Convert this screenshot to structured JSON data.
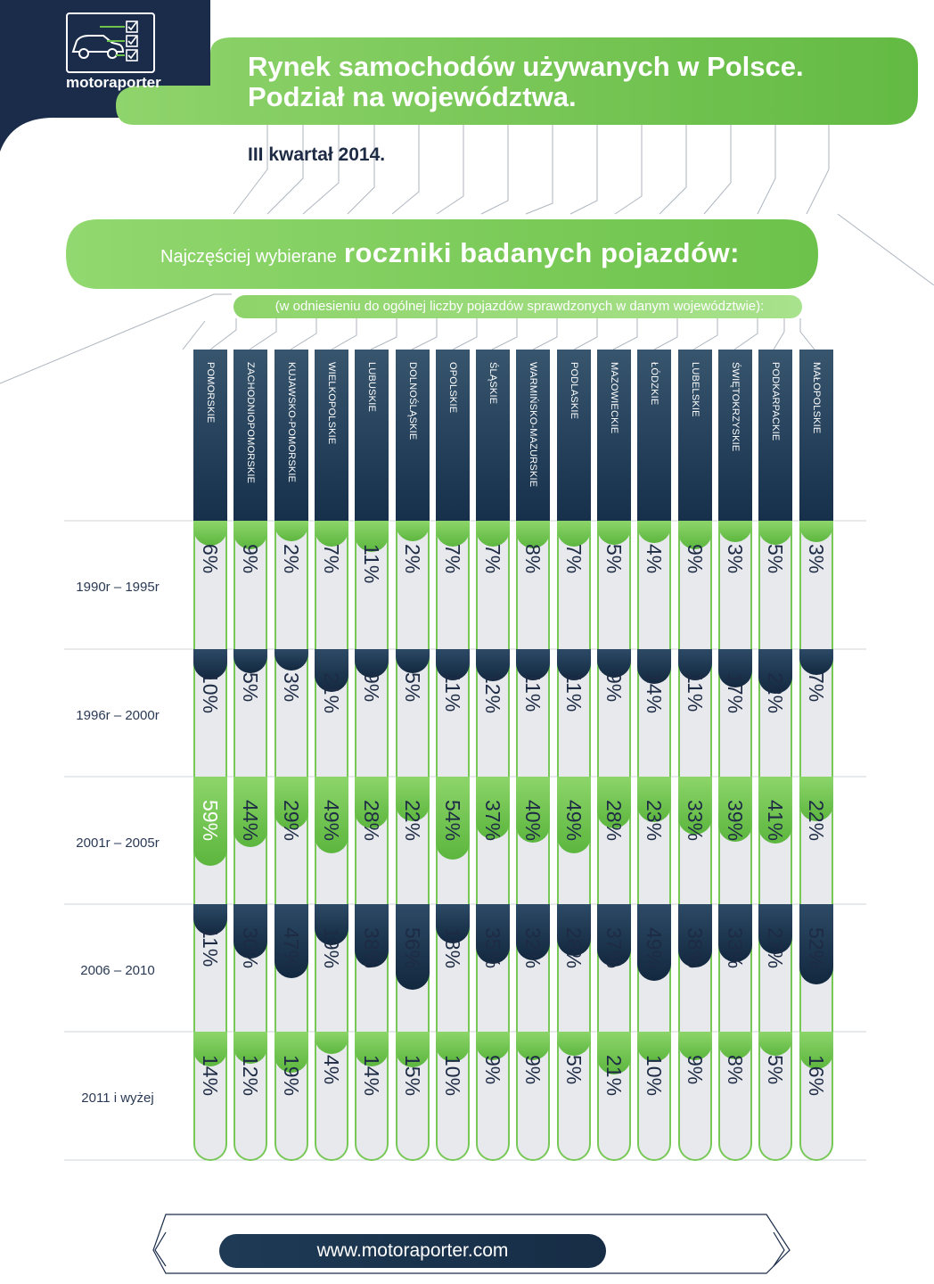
{
  "brand": {
    "logo_text": "motoraporter",
    "website": "www.motoraporter.com"
  },
  "header": {
    "title_line1": "Rynek samochodów używanych  w Polsce.",
    "title_line2": "Podział na województwa.",
    "quarter": "III kwartał 2014."
  },
  "subtitle": {
    "prefix": "Najczęściej wybierane",
    "emphasis": "roczniki badanych pojazdów:",
    "note": "(w odniesieniu do ogólnej liczby pojazdów sprawdzonych w danym województwie):"
  },
  "colors": {
    "navy": "#1a3350",
    "green": "#6cc24a",
    "light_green": "#8dd56a",
    "cell_bg": "#e7e9ec"
  },
  "icons": [
    "car-icon",
    "checkbox-icon",
    "chevron-left-icon",
    "chevron-right-icon"
  ],
  "chart_data": {
    "type": "table",
    "title": "Najczęściej wybierane roczniki badanych pojazdów:",
    "subtitle": "(w odniesieniu do ogólnej liczby pojazdów sprawdzonych w danym województwie):",
    "row_labels": [
      "1990r – 1995r",
      "1996r – 2000r",
      "2001r – 2005r",
      "2006 – 2010",
      "2011 i wyżej"
    ],
    "categories": [
      "POMORSKIE",
      "ZACHODNIOPOMORSKIE",
      "KUJAWSKO-POMORSKIE",
      "WIELKOPOLSKIE",
      "LUBUSKIE",
      "DOLNOŚLĄSKIE",
      "OPOLSKIE",
      "ŚLĄSKIE",
      "WARMIŃSKO-MAZURSKIE",
      "PODLASKIE",
      "MAZOWIECKIE",
      "ŁÓDZKIE",
      "LUBELSKIE",
      "ŚWIĘTOKRZYSKIE",
      "PODKARPACKIE",
      "MAŁOPOLSKIE"
    ],
    "series": [
      {
        "name": "1990r – 1995r",
        "values": [
          6,
          9,
          2,
          7,
          11,
          2,
          7,
          7,
          8,
          7,
          5,
          4,
          9,
          3,
          5,
          3
        ]
      },
      {
        "name": "1996r – 2000r",
        "values": [
          10,
          5,
          3,
          21,
          9,
          5,
          11,
          12,
          11,
          11,
          9,
          14,
          11,
          17,
          22,
          7
        ]
      },
      {
        "name": "2001r – 2005r",
        "values": [
          59,
          44,
          29,
          49,
          28,
          22,
          54,
          37,
          40,
          49,
          28,
          23,
          33,
          39,
          41,
          22
        ]
      },
      {
        "name": "2006 – 2010",
        "values": [
          11,
          30,
          47,
          19,
          38,
          56,
          18,
          35,
          32,
          28,
          37,
          49,
          38,
          33,
          27,
          52
        ]
      },
      {
        "name": "2011 i wyżej",
        "values": [
          14,
          12,
          19,
          4,
          14,
          15,
          10,
          9,
          9,
          5,
          21,
          10,
          9,
          8,
          5,
          16
        ]
      }
    ],
    "unit": "%"
  }
}
